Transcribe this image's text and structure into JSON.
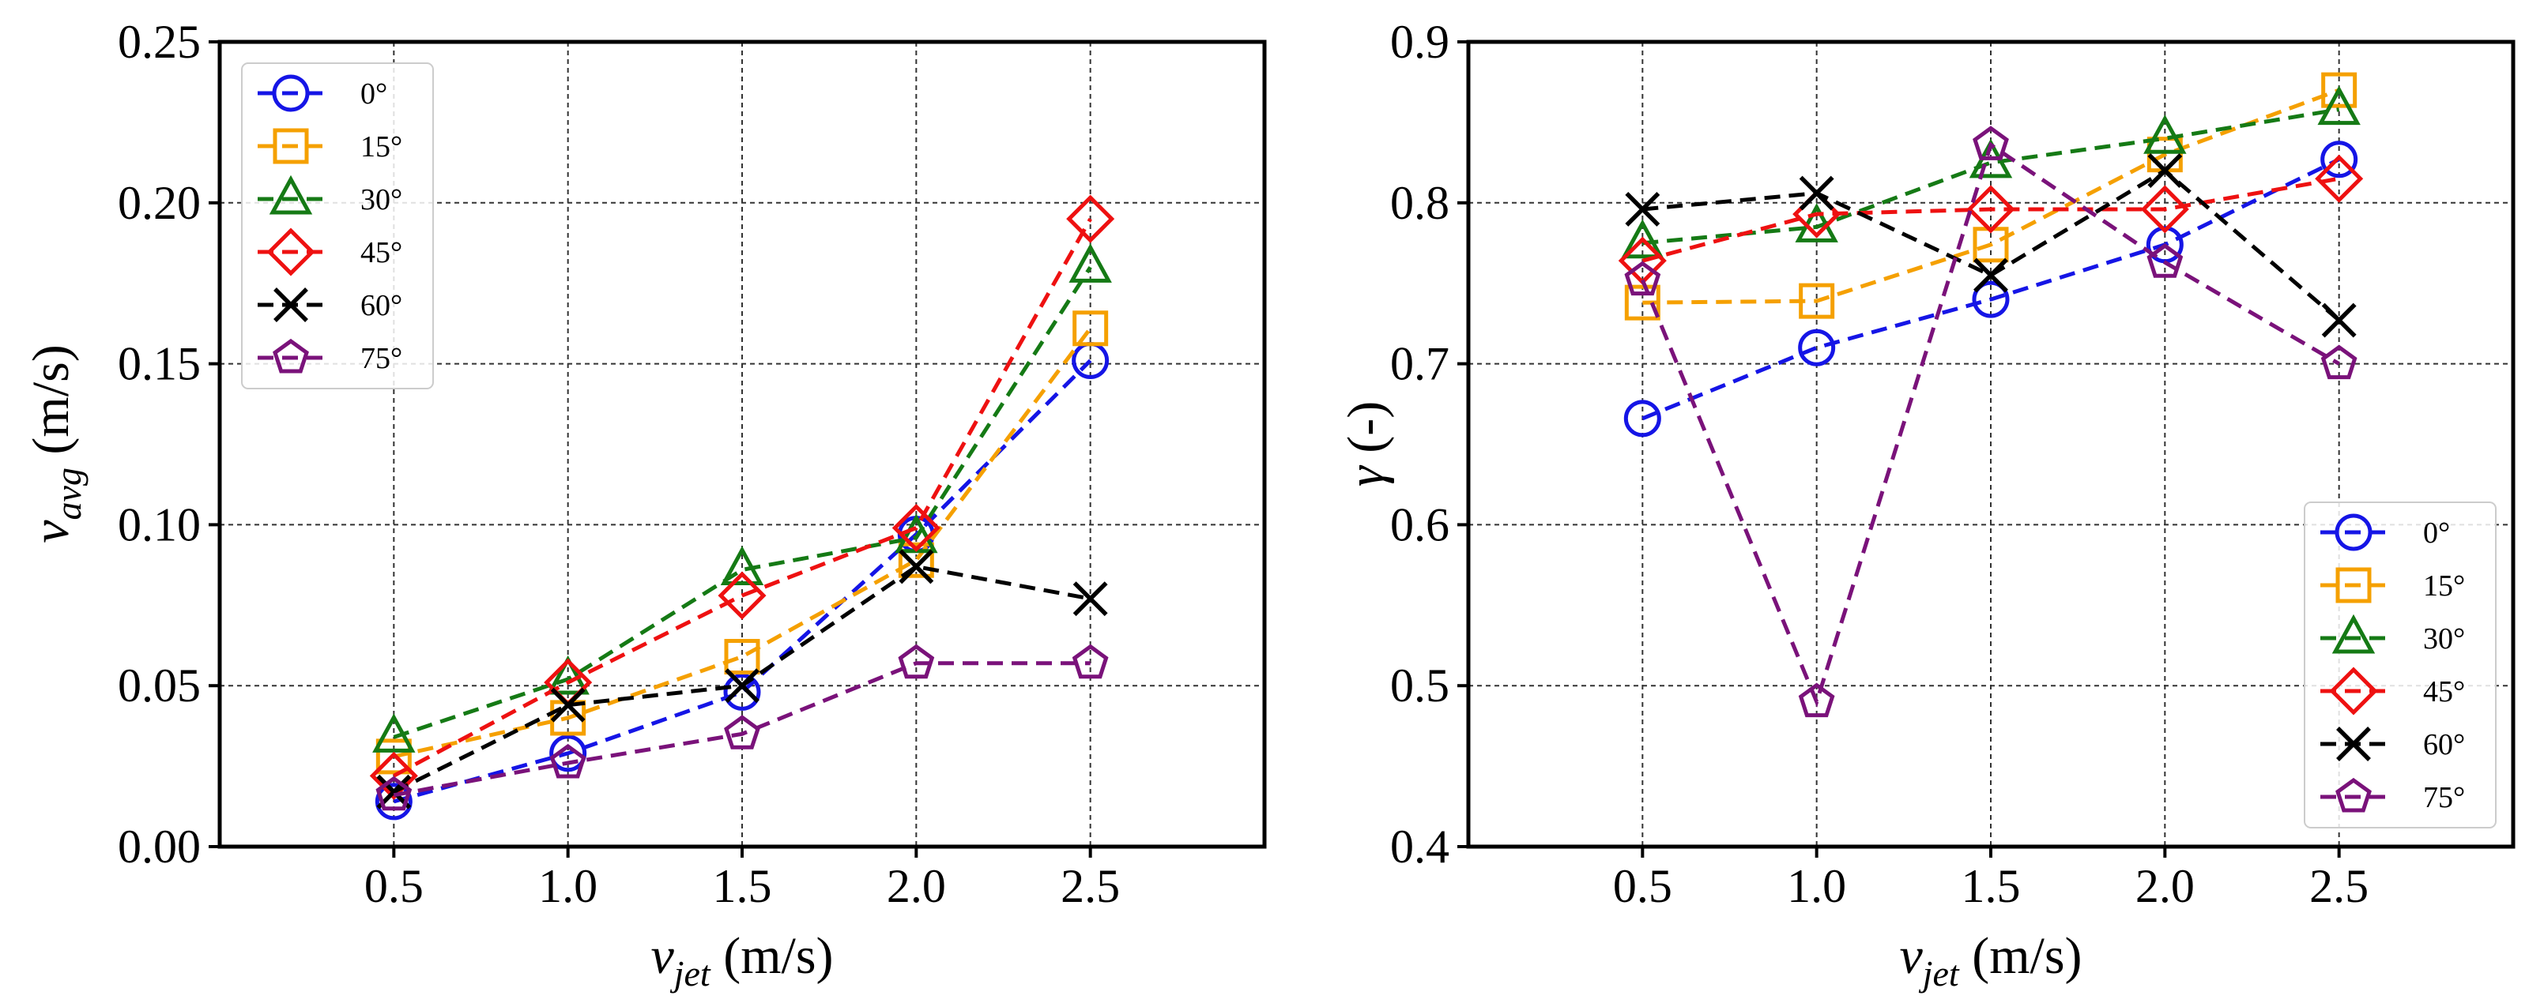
{
  "chart_data": [
    {
      "id": "left",
      "type": "line",
      "x": [
        0.5,
        1.0,
        1.5,
        2.0,
        2.5
      ],
      "xlim": [
        0,
        3.0
      ],
      "ylim": [
        0.0,
        0.25
      ],
      "xticks": [
        "0.5",
        "1.0",
        "1.5",
        "2.0",
        "2.5"
      ],
      "yticks": [
        "0.00",
        "0.05",
        "0.10",
        "0.15",
        "0.20",
        "0.25"
      ],
      "xlabel": {
        "main": "v",
        "sub": "jet",
        "unit": " (m/s)"
      },
      "ylabel": {
        "main": "v",
        "sub": "avg",
        "unit": " (m/s)"
      },
      "grid": true,
      "legend": "top-left",
      "series": [
        {
          "name": "0°",
          "color": "#1515e6",
          "marker": "circle",
          "values": [
            0.014,
            0.029,
            0.048,
            0.097,
            0.151
          ]
        },
        {
          "name": "15°",
          "color": "#f5a000",
          "marker": "square",
          "values": [
            0.028,
            0.04,
            0.059,
            0.089,
            0.161
          ]
        },
        {
          "name": "30°",
          "color": "#157a15",
          "marker": "triangle",
          "values": [
            0.034,
            0.052,
            0.086,
            0.096,
            0.18
          ]
        },
        {
          "name": "45°",
          "color": "#ee1111",
          "marker": "diamond",
          "values": [
            0.022,
            0.051,
            0.078,
            0.099,
            0.195
          ]
        },
        {
          "name": "60°",
          "color": "#000000",
          "marker": "x",
          "values": [
            0.017,
            0.044,
            0.05,
            0.087,
            0.077
          ]
        },
        {
          "name": "75°",
          "color": "#7a127a",
          "marker": "pentagon",
          "values": [
            0.016,
            0.026,
            0.035,
            0.057,
            0.057
          ]
        }
      ]
    },
    {
      "id": "right",
      "type": "line",
      "x": [
        0.5,
        1.0,
        1.5,
        2.0,
        2.5
      ],
      "xlim": [
        0,
        3.0
      ],
      "ylim": [
        0.4,
        0.9
      ],
      "xticks": [
        "0.5",
        "1.0",
        "1.5",
        "2.0",
        "2.5"
      ],
      "yticks": [
        "0.4",
        "0.5",
        "0.6",
        "0.7",
        "0.8",
        "0.9"
      ],
      "xlabel": {
        "main": "v",
        "sub": "jet",
        "unit": " (m/s)"
      },
      "ylabel": {
        "main": "γ",
        "sub": "",
        "unit": " (-)"
      },
      "grid": true,
      "legend": "bottom-right",
      "series": [
        {
          "name": "0°",
          "color": "#1515e6",
          "marker": "circle",
          "values": [
            0.666,
            0.71,
            0.74,
            0.774,
            0.827
          ]
        },
        {
          "name": "15°",
          "color": "#f5a000",
          "marker": "square",
          "values": [
            0.738,
            0.739,
            0.774,
            0.83,
            0.87
          ]
        },
        {
          "name": "30°",
          "color": "#157a15",
          "marker": "triangle",
          "values": [
            0.775,
            0.785,
            0.825,
            0.84,
            0.858
          ]
        },
        {
          "name": "45°",
          "color": "#ee1111",
          "marker": "diamond",
          "values": [
            0.764,
            0.793,
            0.796,
            0.796,
            0.815
          ]
        },
        {
          "name": "60°",
          "color": "#000000",
          "marker": "x",
          "values": [
            0.796,
            0.806,
            0.755,
            0.82,
            0.727
          ]
        },
        {
          "name": "75°",
          "color": "#7a127a",
          "marker": "pentagon",
          "values": [
            0.752,
            0.49,
            0.836,
            0.763,
            0.7
          ]
        }
      ]
    }
  ]
}
